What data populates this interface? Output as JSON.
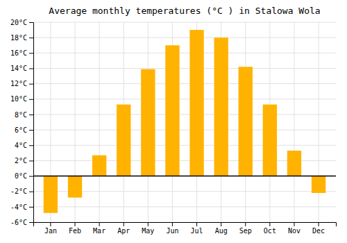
{
  "chart_data": {
    "type": "bar",
    "title": "Average monthly temperatures (°C ) in Stalowa Wola",
    "categories": [
      "Jan",
      "Feb",
      "Mar",
      "Apr",
      "May",
      "Jun",
      "Jul",
      "Aug",
      "Sep",
      "Oct",
      "Nov",
      "Dec"
    ],
    "values": [
      -4.8,
      -2.8,
      2.7,
      9.3,
      13.9,
      17.0,
      19.0,
      18.0,
      14.2,
      9.3,
      3.3,
      -2.2
    ],
    "color": "#FFB300",
    "ylim": [
      -6,
      20
    ],
    "yticks": [
      {
        "value": -6,
        "label": "-6°C"
      },
      {
        "value": -4,
        "label": "-4°C"
      },
      {
        "value": -2,
        "label": "-2°C"
      },
      {
        "value": 0,
        "label": "0°C"
      },
      {
        "value": 2,
        "label": "2°C"
      },
      {
        "value": 4,
        "label": "4°C"
      },
      {
        "value": 6,
        "label": "6°C"
      },
      {
        "value": 8,
        "label": "8°C"
      },
      {
        "value": 10,
        "label": "10°C"
      },
      {
        "value": 12,
        "label": "12°C"
      },
      {
        "value": 14,
        "label": "14°C"
      },
      {
        "value": 16,
        "label": "16°C"
      },
      {
        "value": 18,
        "label": "18°C"
      },
      {
        "value": 20,
        "label": "20°C"
      }
    ],
    "grid": true
  }
}
